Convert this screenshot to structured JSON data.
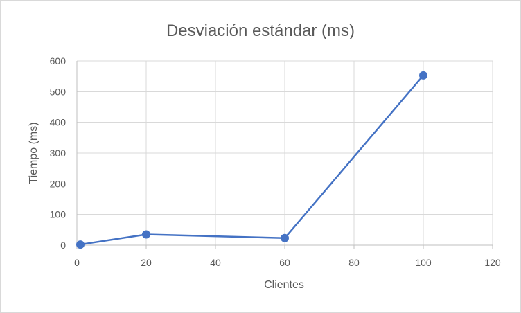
{
  "chart_data": {
    "type": "scatter",
    "title": "Desviación estándar (ms)",
    "xlabel": "Clientes",
    "ylabel": "Tiempo (ms)",
    "xlim": [
      0,
      120
    ],
    "ylim": [
      0,
      600
    ],
    "xticks": [
      0,
      20,
      40,
      60,
      80,
      100,
      120
    ],
    "yticks": [
      0,
      100,
      200,
      300,
      400,
      500,
      600
    ],
    "grid": true,
    "legend": "none",
    "series": [
      {
        "color": "#4472c4",
        "points": [
          {
            "x": 1,
            "y": 2
          },
          {
            "x": 20,
            "y": 35
          },
          {
            "x": 60,
            "y": 23
          },
          {
            "x": 100,
            "y": 553
          }
        ]
      }
    ]
  }
}
